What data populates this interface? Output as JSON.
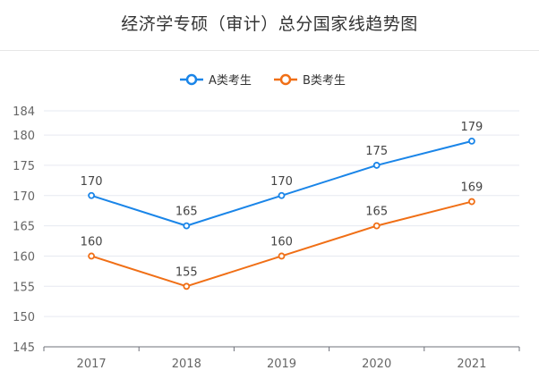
{
  "colors": {
    "series_a": "#1a85e8",
    "series_b": "#f06f16",
    "grid": "#e6e9f0",
    "axis": "#6e7079"
  },
  "chart_data": {
    "type": "line",
    "title": "经济学专硕（审计）总分国家线趋势图",
    "categories": [
      "2017",
      "2018",
      "2019",
      "2020",
      "2021"
    ],
    "series": [
      {
        "name": "A类考生",
        "values": [
          170,
          165,
          170,
          175,
          179
        ]
      },
      {
        "name": "B类考生",
        "values": [
          160,
          155,
          160,
          165,
          169
        ]
      }
    ],
    "ylim": [
      145,
      184
    ],
    "yticks": [
      145,
      150,
      155,
      160,
      165,
      170,
      175,
      180,
      184
    ],
    "grid": true,
    "legend": "top-center",
    "data_labels": true
  }
}
